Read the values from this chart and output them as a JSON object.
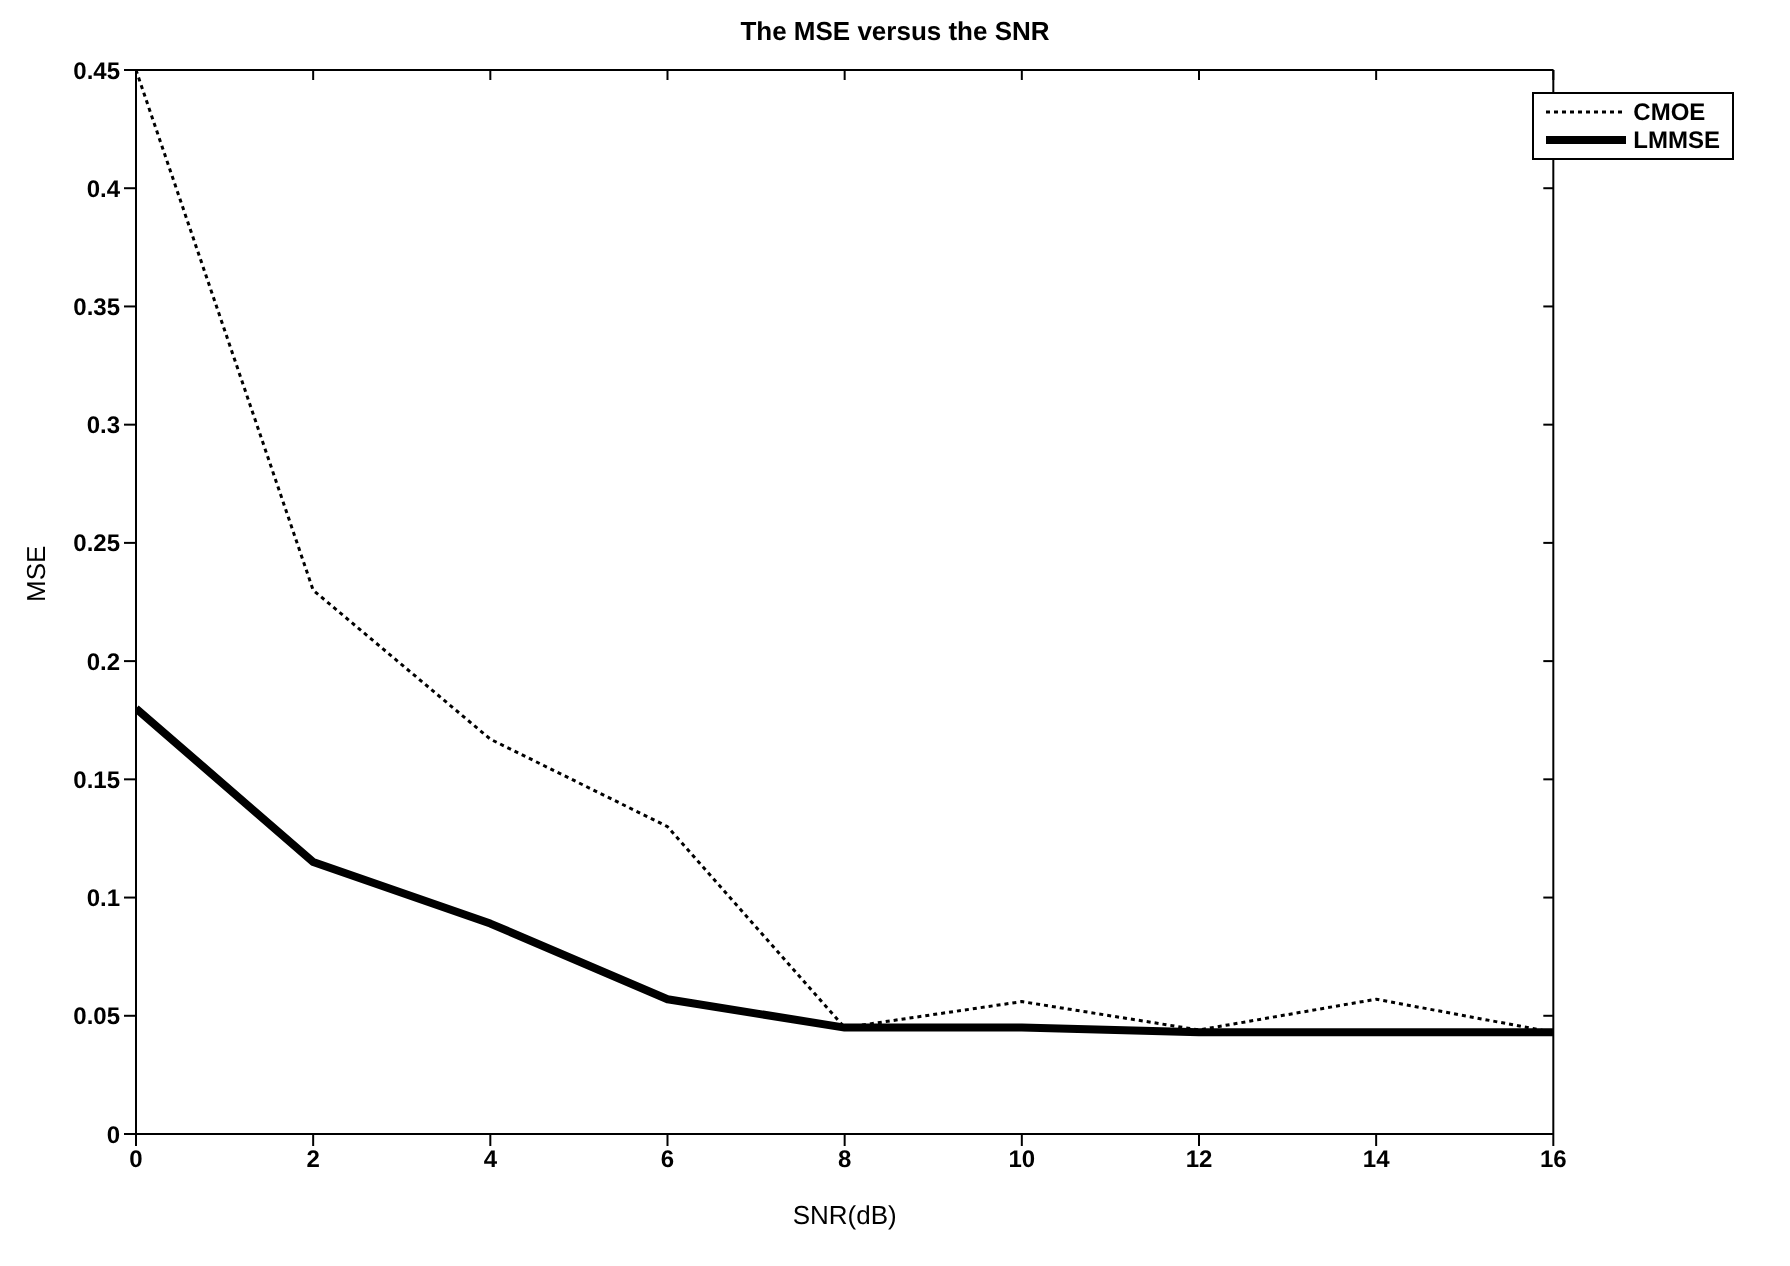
{
  "chart_data": {
    "type": "line",
    "title": "The MSE versus the SNR",
    "xlabel": "SNR(dB)",
    "ylabel": "MSE",
    "x": [
      0,
      2,
      4,
      6,
      8,
      10,
      12,
      14,
      16
    ],
    "series": [
      {
        "name": "CMOE",
        "color": "#000000",
        "line_style": "dotted",
        "values": [
          0.45,
          0.23,
          0.167,
          0.13,
          0.045,
          0.056,
          0.044,
          0.057,
          0.043
        ]
      },
      {
        "name": "LMMSE",
        "color": "#000000",
        "line_style": "solid",
        "values": [
          0.18,
          0.115,
          0.089,
          0.057,
          0.045,
          0.045,
          0.043,
          0.043,
          0.043
        ]
      }
    ],
    "xlim": [
      0,
      16
    ],
    "xticks": [
      0,
      2,
      4,
      6,
      8,
      10,
      12,
      14,
      16
    ],
    "ylim": [
      0,
      0.45
    ],
    "yticks": [
      0,
      0.05,
      0.1,
      0.15,
      0.2,
      0.25,
      0.3,
      0.35,
      0.4,
      0.45
    ],
    "grid": false,
    "legend": "top right",
    "marker": "none"
  }
}
